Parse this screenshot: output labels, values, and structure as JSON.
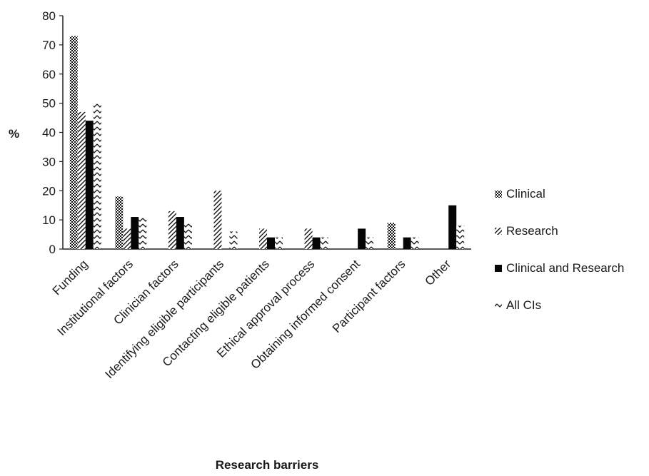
{
  "chart_data": {
    "type": "bar",
    "title": "",
    "xlabel": "Research barriers",
    "ylabel": "%",
    "ylim": [
      0,
      80
    ],
    "yticks": [
      0,
      10,
      20,
      30,
      40,
      50,
      60,
      70,
      80
    ],
    "grid": false,
    "legend_position": "right",
    "categories": [
      "Funding",
      "Institutional factors",
      "Clinician factors",
      "Identifying eligible participants",
      "Contacting eligible patients",
      "Ethical approval process",
      "Obtaining informed consent",
      "Participant factors",
      "Other"
    ],
    "series": [
      {
        "name": "Clinical",
        "pattern": "checker",
        "values": [
          73,
          18,
          0,
          0,
          0,
          0,
          0,
          9,
          0
        ]
      },
      {
        "name": "Research",
        "pattern": "diagonal",
        "values": [
          47,
          7,
          13,
          20,
          7,
          7,
          0,
          0,
          0
        ]
      },
      {
        "name": "Clinical and Research",
        "pattern": "solid",
        "values": [
          44,
          11,
          11,
          0,
          4,
          4,
          7,
          4,
          15
        ]
      },
      {
        "name": "All CIs",
        "pattern": "zigzag",
        "values": [
          50,
          11,
          9,
          6,
          4,
          4,
          4,
          4,
          8
        ]
      }
    ],
    "colors": {
      "ink": "#111111",
      "background": "#ffffff"
    }
  }
}
